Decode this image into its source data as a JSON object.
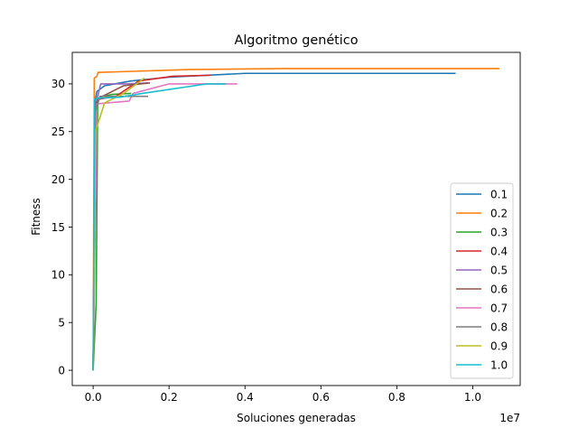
{
  "chart_data": {
    "type": "line",
    "title": "Algoritmo genético",
    "xlabel": "Soluciones generadas",
    "ylabel": "Fitness",
    "x_offset_label": "1e7",
    "xlim": [
      -550000,
      11250000
    ],
    "ylim": [
      -1.6,
      33.3
    ],
    "xticks": [
      0,
      2000000,
      4000000,
      6000000,
      8000000,
      10000000
    ],
    "xtick_labels": [
      "0.0",
      "0.2",
      "0.4",
      "0.6",
      "0.8",
      "1.0"
    ],
    "yticks": [
      0,
      5,
      10,
      15,
      20,
      25,
      30
    ],
    "ytick_labels": [
      "0",
      "5",
      "10",
      "15",
      "20",
      "25",
      "30"
    ],
    "legend_position": "lower-right",
    "series": [
      {
        "name": "0.1",
        "color": "#1f77b4",
        "x": [
          0,
          50000,
          100000,
          300000,
          1000000,
          2000000,
          4000000,
          9550000
        ],
        "y": [
          0,
          28.2,
          29.2,
          29.8,
          30.3,
          30.7,
          31.1,
          31.1
        ]
      },
      {
        "name": "0.2",
        "color": "#ff7f0e",
        "x": [
          0,
          30000,
          100000,
          130000,
          2500000,
          5000000,
          10700000
        ],
        "y": [
          0,
          30.6,
          30.8,
          31.2,
          31.5,
          31.6,
          31.6
        ]
      },
      {
        "name": "0.3",
        "color": "#2ca02c",
        "x": [
          0,
          80000,
          120000,
          180000,
          500000,
          1000000
        ],
        "y": [
          0,
          7.0,
          28.2,
          28.6,
          28.9,
          29.0
        ]
      },
      {
        "name": "0.4",
        "color": "#d62728",
        "x": [
          0,
          60000,
          150000,
          600000,
          1200000,
          2100000,
          3100000
        ],
        "y": [
          0,
          27.8,
          28.4,
          28.7,
          30.3,
          30.8,
          30.9
        ]
      },
      {
        "name": "0.5",
        "color": "#9467bd",
        "x": [
          0,
          50000,
          200000,
          900000,
          1450000
        ],
        "y": [
          0,
          27.5,
          30.0,
          30.0,
          30.1
        ]
      },
      {
        "name": "0.6",
        "color": "#8c564b",
        "x": [
          0,
          60000,
          250000,
          800000,
          1500000
        ],
        "y": [
          0,
          28.0,
          28.7,
          29.8,
          30.1
        ]
      },
      {
        "name": "0.7",
        "color": "#e377c2",
        "x": [
          0,
          100000,
          350000,
          950000,
          1050000,
          2000000,
          3800000
        ],
        "y": [
          0,
          27.9,
          28.0,
          28.2,
          29.0,
          30.0,
          30.0
        ]
      },
      {
        "name": "0.8",
        "color": "#7f7f7f",
        "x": [
          0,
          50000,
          180000,
          1000000,
          1450000
        ],
        "y": [
          0,
          26.9,
          28.7,
          28.7,
          28.7
        ]
      },
      {
        "name": "0.9",
        "color": "#bcbd22",
        "x": [
          0,
          60000,
          300000,
          800000,
          1350000
        ],
        "y": [
          0,
          25.0,
          28.0,
          29.0,
          30.6
        ]
      },
      {
        "name": "1.0",
        "color": "#17becf",
        "x": [
          0,
          40000,
          120000,
          700000,
          1300000,
          3000000,
          3500000
        ],
        "y": [
          0,
          28.4,
          28.5,
          28.6,
          29.0,
          30.0,
          30.0
        ]
      }
    ]
  }
}
